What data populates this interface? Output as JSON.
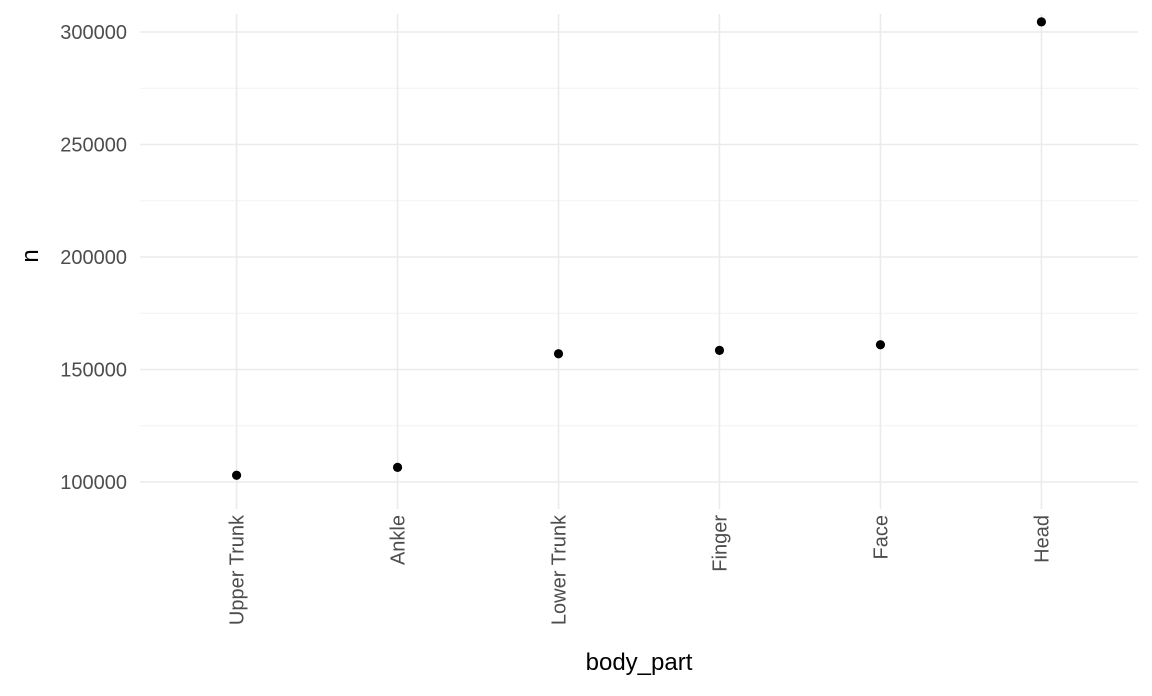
{
  "chart_data": {
    "type": "scatter",
    "title": "",
    "xlabel": "body_part",
    "ylabel": "n",
    "categories": [
      "Upper Trunk",
      "Ankle",
      "Lower Trunk",
      "Finger",
      "Face",
      "Head"
    ],
    "values": [
      103000,
      106500,
      157000,
      158500,
      161000,
      304500
    ],
    "ylim": [
      88000,
      308000
    ],
    "yticks": [
      100000,
      150000,
      200000,
      250000,
      300000
    ],
    "ytick_labels": [
      "100000",
      "150000",
      "200000",
      "250000",
      "300000"
    ],
    "grid": true,
    "legend": "none",
    "colors": {
      "point": "#000000",
      "major_grid": "#ebebeb",
      "minor_grid": "#f2f2f2",
      "tick_text": "#4d4d4d",
      "title_text": "#000000"
    }
  }
}
